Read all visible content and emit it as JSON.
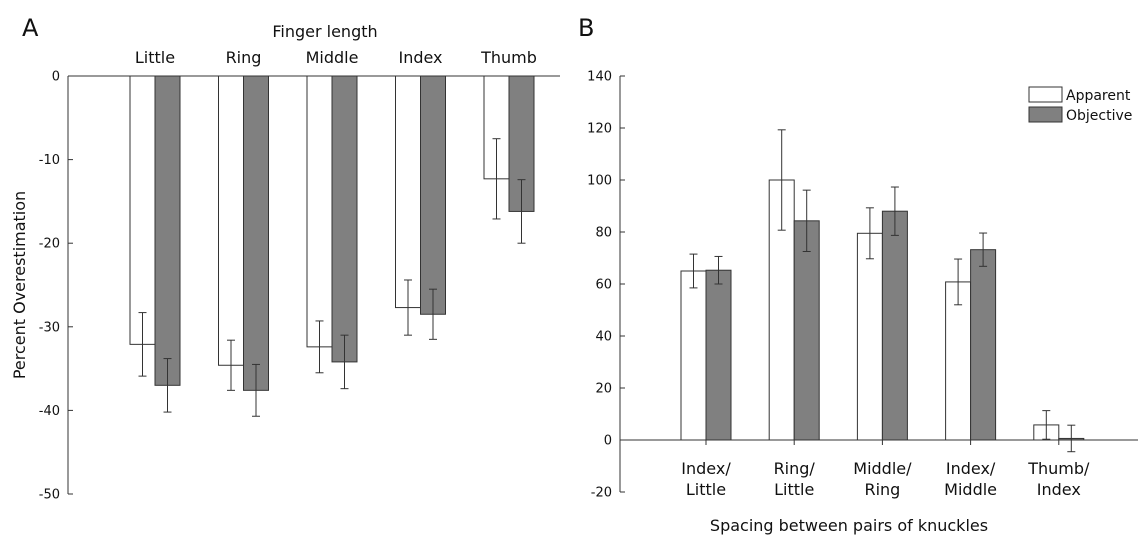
{
  "chart_data": [
    {
      "panel": "A",
      "type": "bar",
      "title": "Finger length",
      "xlabel": "",
      "ylabel": "Percent Overestimation",
      "ylim": [
        -50,
        0
      ],
      "yticks": [
        0,
        -10,
        -20,
        -30,
        -40,
        -50
      ],
      "x_axis_position": "top",
      "categories": [
        "Little",
        "Ring",
        "Middle",
        "Index",
        "Thumb"
      ],
      "series": [
        {
          "name": "Apparent",
          "color": "#ffffff",
          "values": [
            -32.1,
            -34.6,
            -32.4,
            -27.7,
            -12.3
          ],
          "errors": [
            3.8,
            3.0,
            3.1,
            3.3,
            4.8
          ]
        },
        {
          "name": "Objective",
          "color": "#808080",
          "values": [
            -37.0,
            -37.6,
            -34.2,
            -28.5,
            -16.2
          ],
          "errors": [
            3.2,
            3.1,
            3.2,
            3.0,
            3.8
          ]
        }
      ],
      "legend": false
    },
    {
      "panel": "B",
      "type": "bar",
      "title": "",
      "xlabel": "Spacing between pairs of knuckles",
      "ylabel": "",
      "ylim": [
        -20,
        140
      ],
      "yticks": [
        140,
        120,
        100,
        80,
        60,
        40,
        20,
        0,
        -20
      ],
      "categories": [
        [
          "Index/",
          "Little"
        ],
        [
          "Ring/",
          "Little"
        ],
        [
          "Middle/",
          "Ring"
        ],
        [
          "Index/",
          "Middle"
        ],
        [
          "Thumb/",
          "Index"
        ]
      ],
      "series": [
        {
          "name": "Apparent",
          "color": "#ffffff",
          "values": [
            65,
            100,
            79.5,
            60.8,
            5.8
          ],
          "errors": [
            6.5,
            19.3,
            9.8,
            8.8,
            5.5
          ]
        },
        {
          "name": "Objective",
          "color": "#808080",
          "values": [
            65.3,
            84.3,
            88.0,
            73.2,
            0.6
          ],
          "errors": [
            5.3,
            11.8,
            9.3,
            6.4,
            5.1
          ]
        }
      ],
      "legend": true,
      "legend_position": "top-right"
    }
  ]
}
